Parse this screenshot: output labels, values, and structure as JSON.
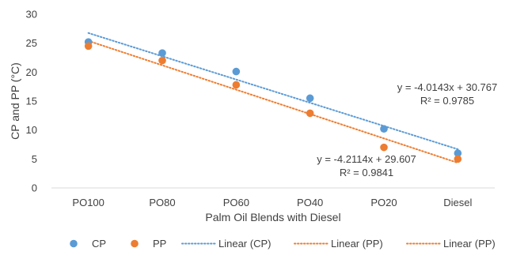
{
  "chart_data": {
    "type": "scatter",
    "title": "",
    "xlabel": "Palm Oil Blends with Diesel",
    "ylabel": "CP and PP (°C)",
    "categories": [
      "PO100",
      "PO80",
      "PO60",
      "PO40",
      "PO20",
      "Diesel"
    ],
    "ylim": [
      0,
      30
    ],
    "yticks": [
      0,
      5,
      10,
      15,
      20,
      25,
      30
    ],
    "grid": false,
    "legend_position": "bottom",
    "series": [
      {
        "name": "CP",
        "color": "#5b9bd5",
        "values": [
          25.2,
          23.3,
          20.1,
          15.5,
          10.2,
          6.0
        ]
      },
      {
        "name": "PP",
        "color": "#ed7d31",
        "values": [
          24.5,
          22.0,
          17.8,
          12.9,
          7.0,
          5.0
        ]
      }
    ],
    "trendlines": [
      {
        "name": "Linear (CP)",
        "series": "CP",
        "color": "#5b9bd5",
        "slope": -4.0143,
        "intercept": 30.767
      },
      {
        "name": "Linear (PP)",
        "series": "PP",
        "color": "#ed7d31",
        "slope": -4.2114,
        "intercept": 29.607
      }
    ],
    "legend": [
      {
        "label": "CP",
        "kind": "marker",
        "color": "#5b9bd5"
      },
      {
        "label": "PP",
        "kind": "marker",
        "color": "#ed7d31"
      },
      {
        "label": "Linear (CP)",
        "kind": "dotted-line",
        "color": "#5b9bd5"
      },
      {
        "label": "Linear (PP)",
        "kind": "dotted-line",
        "color": "#ed7d31"
      },
      {
        "label": "Linear (PP)",
        "kind": "dotted-line",
        "color": "#ed7d31"
      }
    ],
    "annotations": [
      {
        "name": "equation-cp",
        "lines": [
          "y = -4.0143x + 30.767",
          "R² = 0.9785"
        ]
      },
      {
        "name": "equation-pp",
        "lines": [
          "y = -4.2114x + 29.607",
          "R² = 0.9841"
        ]
      }
    ]
  }
}
